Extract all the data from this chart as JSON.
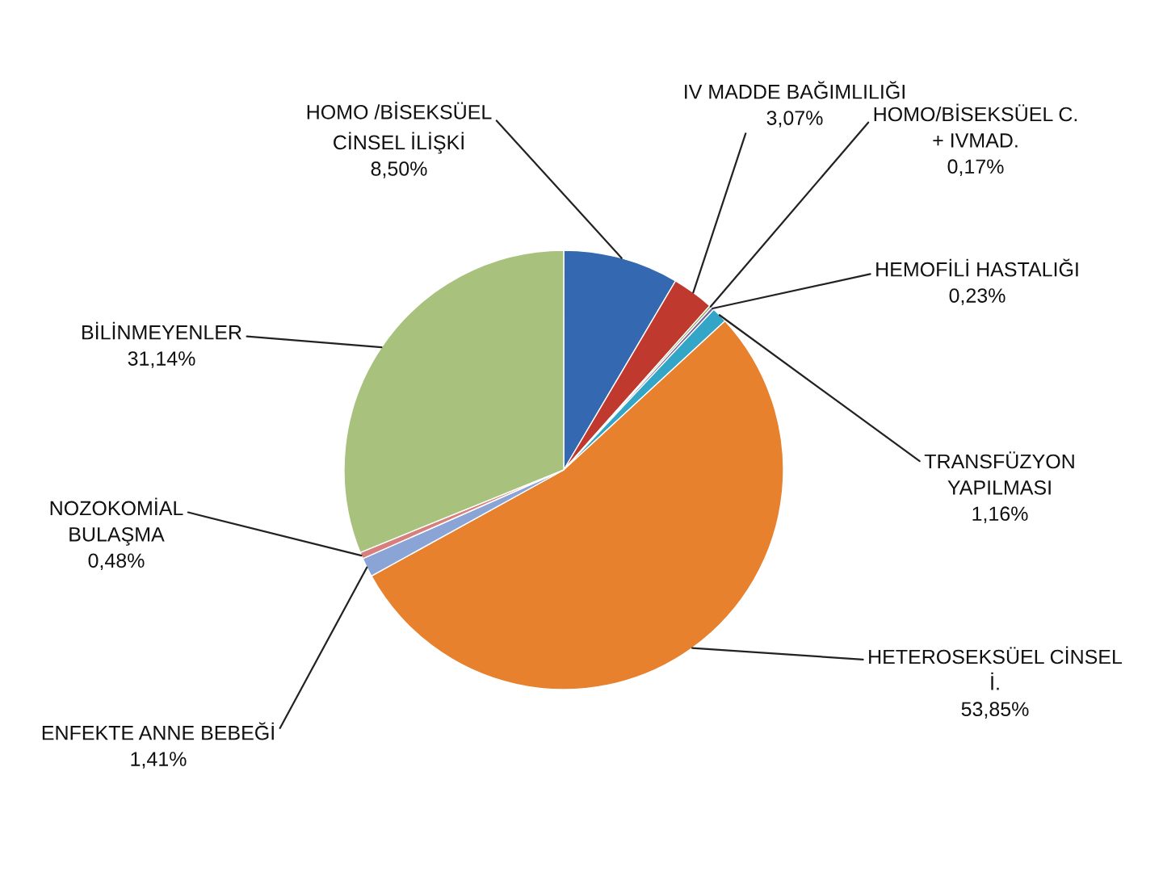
{
  "chart_data": {
    "type": "pie",
    "categories": [
      "HOMO /BİSEKSÜEL CİNSEL İLİŞKİ",
      "IV MADDE BAĞIMLILIĞI",
      "HOMO/BİSEKSÜEL C. + IVMAD.",
      "HEMOFİLİ HASTALIĞI",
      "TRANSFÜZYON YAPILMASI",
      "HETEROSEKSÜEL CİNSEL İ.",
      "ENFEKTE ANNE BEBEĞİ",
      "NOZOKOMİAL BULAŞMA",
      "BİLİNMEYENLER"
    ],
    "values": [
      8.5,
      3.07,
      0.17,
      0.23,
      1.16,
      53.85,
      1.41,
      0.48,
      31.14
    ],
    "value_labels": [
      "8,50%",
      "3,07%",
      "0,17%",
      "0,23%",
      "1,16%",
      "53,85%",
      "1,41%",
      "0,48%",
      "31,14%"
    ],
    "colors": [
      "#3468b0",
      "#c0392f",
      "#8aab4e",
      "#7a5fa0",
      "#33a5c6",
      "#e8812e",
      "#8ba4d6",
      "#d77f7c",
      "#a8c27e"
    ]
  }
}
